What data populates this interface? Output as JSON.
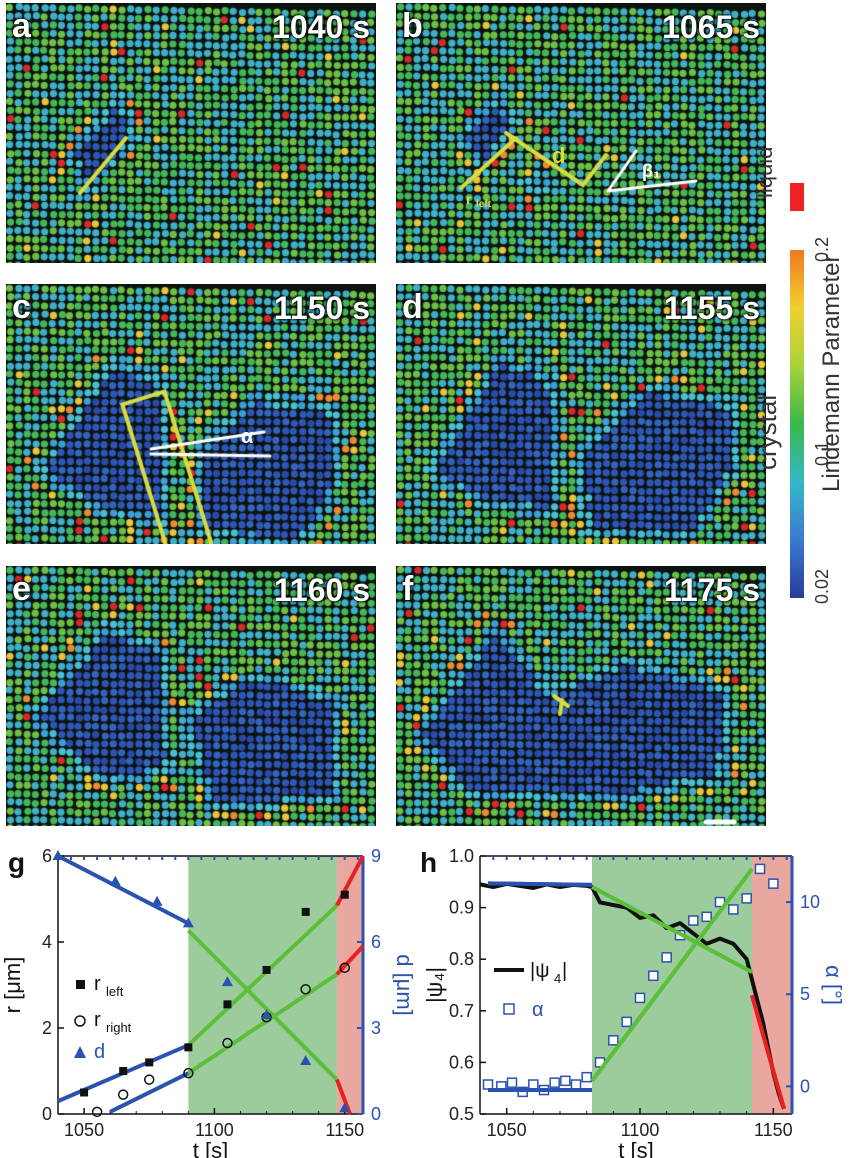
{
  "panels": [
    {
      "label": "a",
      "time": "1040 s"
    },
    {
      "label": "b",
      "time": "1065 s"
    },
    {
      "label": "c",
      "time": "1150 s"
    },
    {
      "label": "d",
      "time": "1155 s"
    },
    {
      "label": "e",
      "time": "1160 s"
    },
    {
      "label": "f",
      "time": "1175 s"
    }
  ],
  "annotations": {
    "d": "d",
    "beta": "β₁",
    "alpha": "α",
    "rleft": "r",
    "left_sub": "left"
  },
  "colorbar": {
    "title": "Lindemann Parameter",
    "ticks": [
      "0.2",
      "0.1",
      "0.02"
    ],
    "liquid_label": "liquid",
    "crystal_label": "crystal",
    "liquid_color": "#ee2222",
    "gradient": [
      "#2a3a9a",
      "#3a7ad0",
      "#33b8c8",
      "#3ab84a",
      "#a8d23a",
      "#f0d030",
      "#f07a20"
    ]
  },
  "colors": {
    "blue_fit": "#2a52b0",
    "green_fit": "#5cbf3a",
    "red_fit": "#e82020",
    "green_band": "#9ccc9c",
    "red_band": "#e8a8a0"
  },
  "chart_data": [
    {
      "panel": "g",
      "type": "scatter",
      "xlabel": "t [s]",
      "ylabel": "r [μm]",
      "y2label": "d [μm]",
      "xlim": [
        1040,
        1157
      ],
      "ylim": [
        0,
        6
      ],
      "y2lim": [
        0,
        9
      ],
      "xticks": [
        "1050",
        "1100",
        "1150"
      ],
      "xtick_values": [
        1050,
        1100,
        1150
      ],
      "yticks": [
        "0",
        "2",
        "4",
        "6"
      ],
      "ytick_values": [
        0,
        2,
        4,
        6
      ],
      "y2ticks": [
        "0",
        "3",
        "6",
        "9"
      ],
      "y2tick_values": [
        0,
        3,
        6,
        9
      ],
      "shaded_regions": [
        {
          "from": 1090,
          "to": 1147,
          "color": "green"
        },
        {
          "from": 1147,
          "to": 1157,
          "color": "red"
        }
      ],
      "legend": [
        {
          "symbol": "square",
          "text": "r",
          "sub": "left"
        },
        {
          "symbol": "circle",
          "text": "r",
          "sub": "right"
        },
        {
          "symbol": "triangle",
          "text": "d",
          "sub": ""
        }
      ],
      "series": [
        {
          "name": "r_left",
          "marker": "square",
          "x": [
            1050,
            1065,
            1075,
            1090,
            1105,
            1120,
            1135,
            1150
          ],
          "y": [
            0.5,
            1.0,
            1.2,
            1.55,
            2.55,
            3.35,
            4.7,
            5.1
          ]
        },
        {
          "name": "r_right",
          "marker": "circle",
          "x": [
            1055,
            1065,
            1075,
            1090,
            1105,
            1120,
            1135,
            1150
          ],
          "y": [
            0.05,
            0.45,
            0.8,
            0.95,
            1.65,
            2.25,
            2.9,
            3.4
          ]
        },
        {
          "name": "d",
          "marker": "triangle",
          "axis": "y2",
          "x": [
            1040,
            1062,
            1078,
            1090,
            1105,
            1120,
            1135,
            1150
          ],
          "y": [
            9.0,
            8.1,
            7.4,
            6.65,
            4.6,
            3.45,
            1.85,
            0.2
          ]
        }
      ],
      "fits": [
        {
          "color": "blue",
          "x": [
            1040,
            1090
          ],
          "y": [
            0.3,
            1.6
          ]
        },
        {
          "color": "blue",
          "x": [
            1060,
            1090
          ],
          "y": [
            0.05,
            0.95
          ]
        },
        {
          "color": "blue",
          "axis": "y2",
          "x": [
            1040,
            1090
          ],
          "y": [
            9.0,
            6.65
          ]
        },
        {
          "color": "green",
          "x": [
            1090,
            1147
          ],
          "y": [
            1.6,
            4.85
          ]
        },
        {
          "color": "green",
          "x": [
            1090,
            1147
          ],
          "y": [
            0.95,
            3.25
          ]
        },
        {
          "color": "green",
          "axis": "y2",
          "x": [
            1090,
            1147
          ],
          "y": [
            6.4,
            1.2
          ]
        },
        {
          "color": "red",
          "x": [
            1147,
            1157
          ],
          "y": [
            4.85,
            6.0
          ]
        },
        {
          "color": "red",
          "x": [
            1147,
            1157
          ],
          "y": [
            3.25,
            3.9
          ]
        },
        {
          "color": "red",
          "axis": "y2",
          "x": [
            1147,
            1152
          ],
          "y": [
            1.2,
            0.0
          ]
        }
      ]
    },
    {
      "panel": "h",
      "type": "line",
      "xlabel": "t [s]",
      "ylabel": "|ψ₄|",
      "y2label": "α [°]",
      "xlim": [
        1040,
        1157
      ],
      "ylim": [
        0.5,
        1.0
      ],
      "y2lim": [
        -1.5,
        12.5
      ],
      "xticks": [
        "1050",
        "1100",
        "1150"
      ],
      "xtick_values": [
        1050,
        1100,
        1150
      ],
      "yticks": [
        "0.5",
        "0.6",
        "0.7",
        "0.8",
        "0.9",
        "1.0"
      ],
      "ytick_values": [
        0.5,
        0.6,
        0.7,
        0.8,
        0.9,
        1.0
      ],
      "y2ticks": [
        "0",
        "5",
        "10"
      ],
      "y2tick_values": [
        0,
        5,
        10
      ],
      "shaded_regions": [
        {
          "from": 1082,
          "to": 1142,
          "color": "green"
        },
        {
          "from": 1142,
          "to": 1157,
          "color": "red"
        }
      ],
      "legend": [
        {
          "symbol": "line",
          "text": "|ψ",
          "sub": "4"
        },
        {
          "symbol": "square",
          "text": "α",
          "sub": ""
        }
      ],
      "psi_series": {
        "x": [
          1040,
          1045,
          1050,
          1055,
          1060,
          1065,
          1070,
          1075,
          1080,
          1082,
          1085,
          1090,
          1095,
          1100,
          1105,
          1110,
          1115,
          1120,
          1125,
          1130,
          1135,
          1140,
          1142,
          1144,
          1146,
          1148,
          1150,
          1152,
          1154
        ],
        "y": [
          0.945,
          0.94,
          0.946,
          0.942,
          0.938,
          0.945,
          0.94,
          0.944,
          0.942,
          0.94,
          0.91,
          0.905,
          0.9,
          0.88,
          0.885,
          0.86,
          0.87,
          0.85,
          0.83,
          0.84,
          0.83,
          0.8,
          0.76,
          0.72,
          0.68,
          0.63,
          0.58,
          0.54,
          0.51
        ]
      },
      "alpha_series": {
        "x": [
          1043,
          1048,
          1052,
          1056,
          1060,
          1064,
          1068,
          1072,
          1076,
          1080,
          1085,
          1090,
          1095,
          1100,
          1105,
          1110,
          1115,
          1120,
          1125,
          1130,
          1135,
          1140,
          1145,
          1150
        ],
        "y": [
          0.1,
          0.0,
          0.2,
          -0.3,
          0.1,
          -0.2,
          0.2,
          0.3,
          0.1,
          0.5,
          1.3,
          2.5,
          3.5,
          4.8,
          6.0,
          7.0,
          8.2,
          9.0,
          9.2,
          10.0,
          9.6,
          10.2,
          11.8,
          11.0
        ]
      },
      "fits": [
        {
          "color": "blue",
          "x": [
            1043,
            1082
          ],
          "y": [
            0.947,
            0.944
          ]
        },
        {
          "color": "blue",
          "axis": "y2",
          "x": [
            1043,
            1082
          ],
          "y": [
            -0.2,
            -0.2
          ]
        },
        {
          "color": "green",
          "x": [
            1082,
            1142
          ],
          "y": [
            0.94,
            0.775
          ]
        },
        {
          "color": "green",
          "axis": "y2",
          "x": [
            1082,
            1142
          ],
          "y": [
            0.3,
            11.8
          ]
        },
        {
          "color": "red",
          "x": [
            1142,
            1154
          ],
          "y": [
            0.73,
            0.51
          ]
        }
      ]
    }
  ]
}
